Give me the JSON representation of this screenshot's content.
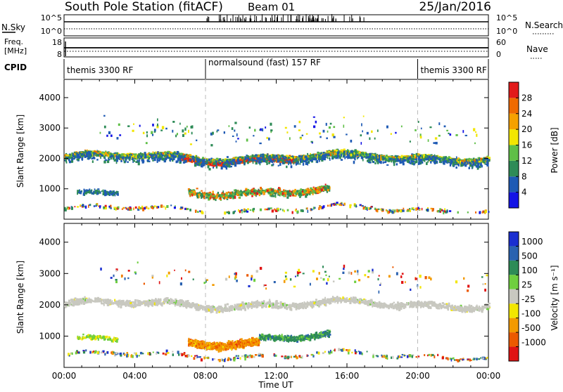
{
  "header": {
    "station": "South Pole Station (fitACF)",
    "beam": "Beam 01",
    "date": "25/Jan/2016"
  },
  "side_labels": {
    "nsky": "N.Sky",
    "nsearch": "N.Search",
    "freq_line1": "Freq.",
    "freq_line2": "[MHz]",
    "cpid": "CPID",
    "nave": "Nave"
  },
  "strip_ticks": {
    "nsky_left": [
      "10^5",
      "10^0"
    ],
    "nsky_right": [
      "10^5",
      "10^0"
    ],
    "freq_left": [
      "18",
      "8"
    ],
    "nave_right": [
      "60",
      "0"
    ]
  },
  "cpid_segments": [
    {
      "label": "themis 3300 RF",
      "start_h": 0,
      "end_h": 8
    },
    {
      "label": "normalsound (fast) 157 RF",
      "start_h": 8,
      "end_h": 20
    },
    {
      "label": "themis 3300 RF",
      "start_h": 20,
      "end_h": 24
    }
  ],
  "chart_data": [
    {
      "type": "heatmap",
      "title": "",
      "xlabel": "",
      "ylabel": "Slant Range [km]",
      "xlim": [
        0,
        24
      ],
      "ylim": [
        0,
        4600
      ],
      "yticks": [
        1000,
        2000,
        3000,
        4000
      ],
      "colorbar": {
        "label": "Power [dB]",
        "ticks": [
          4,
          8,
          12,
          16,
          20,
          24,
          28
        ],
        "range": [
          0,
          32
        ],
        "colors": [
          "#1414e6",
          "#1e5ab4",
          "#2e8b57",
          "#5fbf47",
          "#f2e600",
          "#f6a100",
          "#ef6a00",
          "#e21a1a"
        ]
      },
      "scatter_regions": [
        {
          "t_start": 0,
          "t_end": 24,
          "r_center": 2050,
          "r_spread": 300,
          "level": "mid"
        },
        {
          "t_start": 7,
          "t_end": 15,
          "r_center": 1000,
          "r_spread": 300,
          "level": "high"
        },
        {
          "t_start": 0.5,
          "t_end": 3,
          "r_center": 900,
          "r_spread": 150,
          "level": "low"
        }
      ]
    },
    {
      "type": "heatmap",
      "title": "",
      "xlabel": "Time UT",
      "ylabel": "Slant Range [km]",
      "xlim": [
        0,
        24
      ],
      "ylim": [
        0,
        4600
      ],
      "yticks": [
        1000,
        2000,
        3000,
        4000
      ],
      "xticks": [
        "00:00",
        "04:00",
        "08:00",
        "12:00",
        "16:00",
        "20:00",
        "00:00"
      ],
      "colorbar": {
        "label": "Velocity [m s⁻¹]",
        "ticks": [
          "1000",
          "500",
          "100",
          "25",
          "-25",
          "-100",
          "-500",
          "-1000"
        ],
        "colors": [
          "#1a2fd0",
          "#2a62b0",
          "#2e8b57",
          "#6fcf3f",
          "#c8c8c0",
          "#f2e600",
          "#f39a00",
          "#ec5a00",
          "#e01414"
        ]
      },
      "scatter_regions": [
        {
          "t_start": 0,
          "t_end": 24,
          "r_center": 2000,
          "r_spread": 300,
          "level": "ground"
        },
        {
          "t_start": 7,
          "t_end": 11,
          "r_center": 850,
          "r_spread": 250,
          "level": "negative"
        },
        {
          "t_start": 11,
          "t_end": 15,
          "r_center": 1000,
          "r_spread": 200,
          "level": "positive"
        }
      ]
    }
  ]
}
